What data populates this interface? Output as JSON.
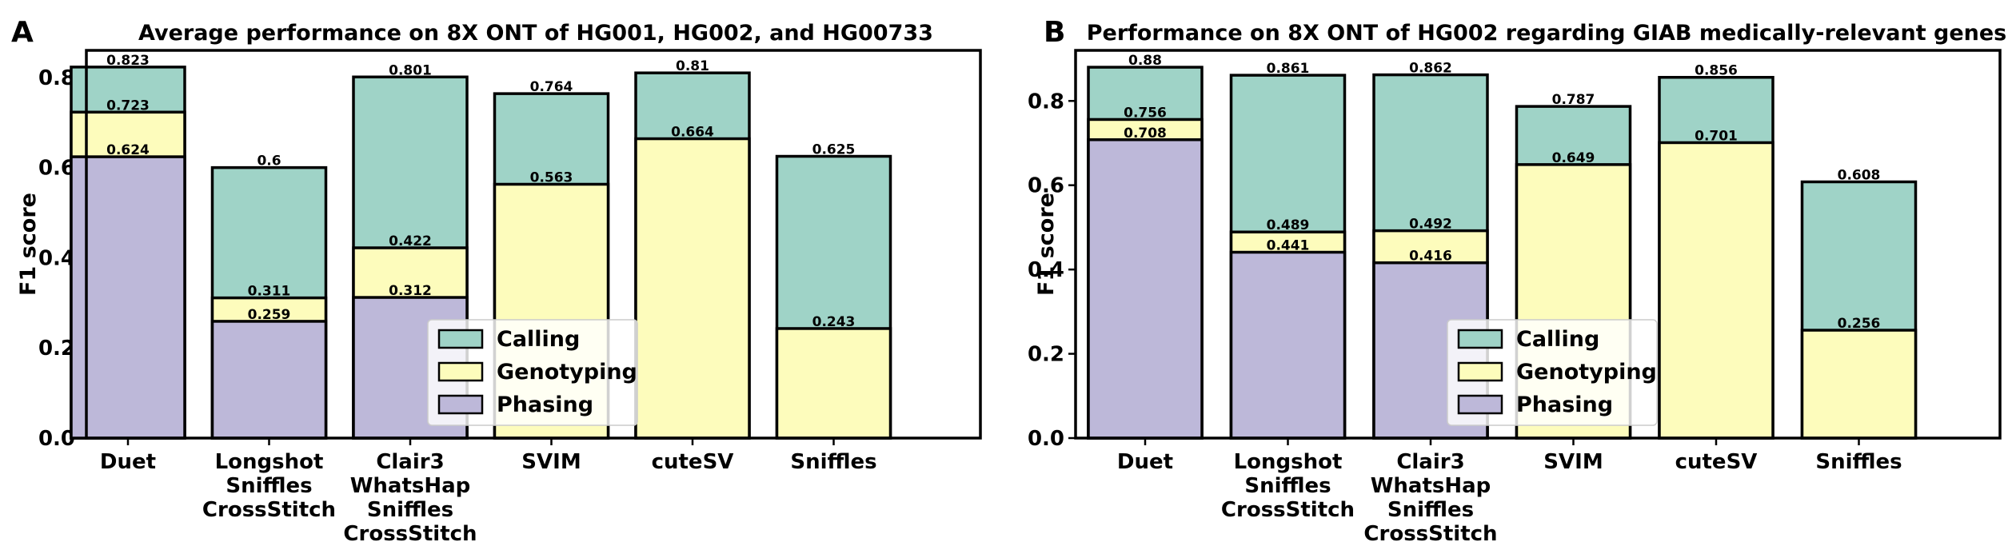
{
  "colors": {
    "calling": "#9fd3c7",
    "genotyping": "#fdfcbc",
    "phasing": "#bdb8d9",
    "edge": "#000000"
  },
  "chart_data": [
    {
      "type": "bar",
      "panel_label": "A",
      "title": "Average performance on 8X ONT of HG001, HG002, and HG00733",
      "ylabel": "F1 score",
      "xlabel": "",
      "ylim": [
        0,
        0.86
      ],
      "yticks": [
        "0.0",
        "0.2",
        "0.4",
        "0.6",
        "0.8"
      ],
      "categories": [
        [
          "Duet"
        ],
        [
          "Longshot",
          "Sniffles",
          "CrossStitch"
        ],
        [
          "Clair3",
          "WhatsHap",
          "Sniffles",
          "CrossStitch"
        ],
        [
          "SVIM"
        ],
        [
          "cuteSV"
        ],
        [
          "Sniffles"
        ]
      ],
      "series": [
        {
          "name": "Calling",
          "values": [
            0.823,
            0.6,
            0.801,
            0.764,
            0.81,
            0.625
          ],
          "labels": [
            "0.823",
            "0.6",
            "0.801",
            "0.764",
            "0.81",
            "0.625"
          ]
        },
        {
          "name": "Genotyping",
          "values": [
            0.723,
            0.311,
            0.422,
            0.563,
            0.664,
            0.243
          ],
          "labels": [
            "0.723",
            "0.311",
            "0.422",
            "0.563",
            "0.664",
            "0.243"
          ]
        },
        {
          "name": "Phasing",
          "values": [
            0.624,
            0.259,
            0.312,
            null,
            null,
            null
          ],
          "labels": [
            "0.624",
            "0.259",
            "0.312",
            null,
            null,
            null
          ]
        }
      ],
      "legend": [
        "Calling",
        "Genotyping",
        "Phasing"
      ],
      "legend_position": "lower-center",
      "grid": false
    },
    {
      "type": "bar",
      "panel_label": "B",
      "title": "Performance on 8X ONT of HG002 regarding GIAB medically-relevant genes",
      "ylabel": "F1 score",
      "xlabel": "",
      "ylim": [
        0,
        0.92
      ],
      "yticks": [
        "0.0",
        "0.2",
        "0.4",
        "0.6",
        "0.8"
      ],
      "categories": [
        [
          "Duet"
        ],
        [
          "Longshot",
          "Sniffles",
          "CrossStitch"
        ],
        [
          "Clair3",
          "WhatsHap",
          "Sniffles",
          "CrossStitch"
        ],
        [
          "SVIM"
        ],
        [
          "cuteSV"
        ],
        [
          "Sniffles"
        ]
      ],
      "series": [
        {
          "name": "Calling",
          "values": [
            0.88,
            0.861,
            0.862,
            0.787,
            0.856,
            0.608
          ],
          "labels": [
            "0.88",
            "0.861",
            "0.862",
            "0.787",
            "0.856",
            "0.608"
          ]
        },
        {
          "name": "Genotyping",
          "values": [
            0.756,
            0.489,
            0.492,
            0.649,
            0.701,
            0.256
          ],
          "labels": [
            "0.756",
            "0.489",
            "0.492",
            "0.649",
            "0.701",
            "0.256"
          ]
        },
        {
          "name": "Phasing",
          "values": [
            0.708,
            0.441,
            0.416,
            null,
            null,
            null
          ],
          "labels": [
            "0.708",
            "0.441",
            "0.416",
            null,
            null,
            null
          ]
        }
      ],
      "legend": [
        "Calling",
        "Genotyping",
        "Phasing"
      ],
      "legend_position": "lower-center",
      "grid": false
    }
  ]
}
